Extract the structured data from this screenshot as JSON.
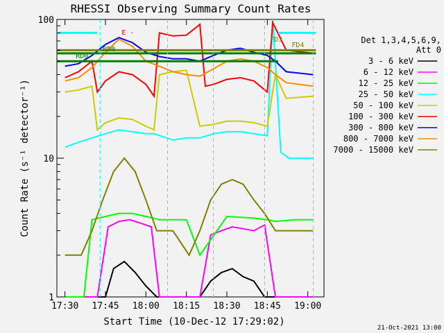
{
  "chart_data": {
    "type": "line",
    "title": "RHESSI Observing Summary Count Rates",
    "xlabel": "Start Time (10-Dec-12 17:29:02)",
    "ylabel": "Count Rate (s⁻¹ detector⁻¹)",
    "yscale": "log",
    "ylim": [
      1,
      100
    ],
    "xlim": [
      "17:27",
      "19:06"
    ],
    "x_ticks": [
      "17:30",
      "17:45",
      "18:00",
      "18:15",
      "18:30",
      "18:45",
      "19:00"
    ],
    "y_ticks": [
      "1",
      "10",
      "100"
    ],
    "grid": false,
    "legend_placement": "right",
    "legend_header": [
      "Det 1,3,4,5,6,9,",
      "Att 0"
    ],
    "timestamp": "21-Oct-2021 13:00",
    "series": [
      {
        "name": "3 - 6 keV",
        "color": "#000000",
        "x": [
          "17:30",
          "17:42",
          "17:45",
          "17:48",
          "17:52",
          "17:56",
          "18:00",
          "18:04",
          "18:20",
          "18:24",
          "18:28",
          "18:32",
          "18:36",
          "18:40",
          "18:44",
          "18:50",
          "19:02"
        ],
        "values": [
          1,
          1,
          1,
          1.6,
          1.8,
          1.5,
          1.2,
          1,
          1,
          1.3,
          1.5,
          1.6,
          1.4,
          1.3,
          1,
          1,
          1
        ]
      },
      {
        "name": "6 - 12 keV",
        "color": "#ff00ff",
        "x": [
          "17:30",
          "17:42",
          "17:46",
          "17:50",
          "17:54",
          "17:58",
          "18:02",
          "18:05",
          "18:20",
          "18:24",
          "18:28",
          "18:32",
          "18:36",
          "18:40",
          "18:44",
          "18:48",
          "19:02"
        ],
        "values": [
          1,
          1,
          3.2,
          3.5,
          3.6,
          3.4,
          3.2,
          1,
          1,
          2.8,
          3,
          3.2,
          3.1,
          3,
          3.3,
          1,
          1
        ]
      },
      {
        "name": "12 - 25 keV",
        "color": "#00ff00",
        "x": [
          "17:30",
          "17:37",
          "17:40",
          "17:45",
          "17:50",
          "17:55",
          "18:00",
          "18:05",
          "18:15",
          "18:20",
          "18:30",
          "18:40",
          "18:45",
          "18:48",
          "18:55",
          "19:02"
        ],
        "values": [
          1,
          1,
          3.6,
          3.8,
          4,
          4,
          3.8,
          3.6,
          3.6,
          2,
          3.8,
          3.7,
          3.6,
          3.5,
          3.6,
          3.6
        ]
      },
      {
        "name": "25 - 50 keV",
        "color": "#00ffff",
        "x": [
          "17:30",
          "17:35",
          "17:40",
          "17:45",
          "17:50",
          "17:55",
          "18:00",
          "18:03",
          "18:10",
          "18:15",
          "18:20",
          "18:25",
          "18:30",
          "18:35",
          "18:40",
          "18:45",
          "18:47",
          "18:50",
          "18:53",
          "19:02"
        ],
        "values": [
          12,
          13,
          14,
          15,
          16,
          15.5,
          15,
          15,
          13.5,
          14,
          14,
          15,
          15.5,
          15.5,
          15,
          14.5,
          100,
          11,
          10,
          10
        ]
      },
      {
        "name": "50 - 100 keV",
        "color": "#cccc00",
        "x": [
          "17:30",
          "17:35",
          "17:40",
          "17:42",
          "17:45",
          "17:50",
          "17:55",
          "18:00",
          "18:03",
          "18:05",
          "18:10",
          "18:15",
          "18:20",
          "18:25",
          "18:30",
          "18:35",
          "18:40",
          "18:45",
          "18:48",
          "18:52",
          "19:02"
        ],
        "values": [
          30,
          31,
          33,
          16,
          18,
          19.5,
          19,
          17,
          16,
          40,
          42,
          43,
          17,
          17.5,
          18.5,
          18.5,
          18,
          17,
          40,
          27,
          28
        ]
      },
      {
        "name": "100 - 300 keV",
        "color": "#ff0000",
        "x": [
          "17:30",
          "17:35",
          "17:40",
          "17:42",
          "17:45",
          "17:50",
          "17:55",
          "18:00",
          "18:03",
          "18:05",
          "18:10",
          "18:15",
          "18:20",
          "18:22",
          "18:25",
          "18:30",
          "18:35",
          "18:40",
          "18:45",
          "18:47",
          "18:52",
          "19:02"
        ],
        "values": [
          38,
          42,
          50,
          30,
          36,
          42,
          40,
          34,
          28,
          80,
          76,
          77,
          92,
          33,
          34,
          37,
          38,
          36,
          30,
          95,
          60,
          57
        ]
      },
      {
        "name": "300 - 800 keV",
        "color": "#0000ff",
        "x": [
          "17:30",
          "17:35",
          "17:40",
          "17:45",
          "17:50",
          "17:55",
          "18:00",
          "18:05",
          "18:10",
          "18:15",
          "18:20",
          "18:25",
          "18:30",
          "18:35",
          "18:40",
          "18:45",
          "18:48",
          "18:52",
          "19:02"
        ],
        "values": [
          46,
          48,
          55,
          66,
          74,
          68,
          58,
          54,
          52,
          52,
          50,
          55,
          60,
          62,
          58,
          55,
          50,
          42,
          40
        ]
      },
      {
        "name": "800 - 7000 keV",
        "color": "#ff8c00",
        "x": [
          "17:30",
          "17:35",
          "17:40",
          "17:45",
          "17:50",
          "17:55",
          "18:00",
          "18:05",
          "18:10",
          "18:15",
          "18:20",
          "18:25",
          "18:30",
          "18:35",
          "18:40",
          "18:45",
          "18:48",
          "18:52",
          "19:02"
        ],
        "values": [
          36,
          38,
          45,
          58,
          72,
          64,
          50,
          46,
          42,
          40,
          39,
          44,
          50,
          52,
          50,
          45,
          40,
          35,
          33
        ]
      },
      {
        "name": "7000 - 15000 keV",
        "color": "#7f7f00",
        "x": [
          "17:30",
          "17:36",
          "17:40",
          "17:44",
          "17:48",
          "17:52",
          "17:56",
          "18:00",
          "18:04",
          "18:10",
          "18:16",
          "18:20",
          "18:24",
          "18:28",
          "18:32",
          "18:36",
          "18:40",
          "18:44",
          "18:48",
          "19:02"
        ],
        "values": [
          2,
          2,
          3,
          5,
          8,
          10,
          8,
          5,
          3,
          3,
          2,
          3,
          5,
          6.5,
          7,
          6.5,
          5,
          4,
          3,
          3
        ]
      }
    ],
    "annotations": [
      {
        "text": "RD0",
        "x": "17:44"
      },
      {
        "text": "RD0",
        "x": "17:34"
      },
      {
        "text": "FD3",
        "x": "18:46"
      },
      {
        "text": "FD4",
        "x": "18:54"
      },
      {
        "text": "E -",
        "x": "17:51"
      }
    ]
  }
}
